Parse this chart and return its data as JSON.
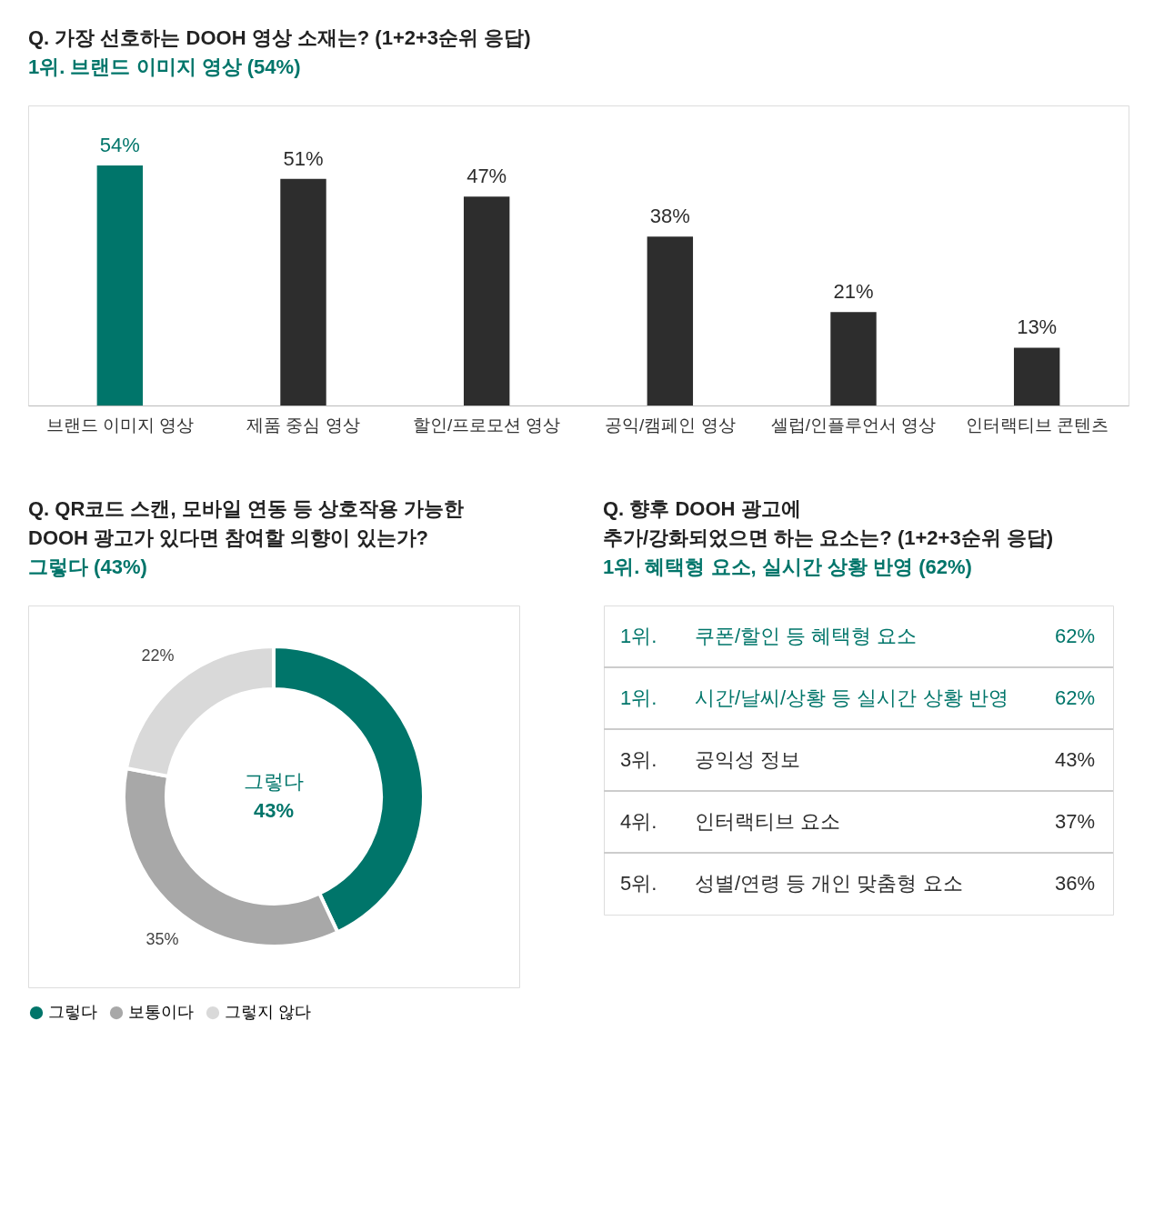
{
  "chart_data": [
    {
      "type": "bar",
      "title": "Q. 가장 선호하는 DOOH 영상 소재는? (1+2+3순위 응답)",
      "subtitle": "1위. 브랜드 이미지 영상 (54%)",
      "categories": [
        "브랜드 이미지 영상",
        "제품 중심 영상",
        "할인/프로모션 영상",
        "공익/캠페인 영상",
        "셀럽/인플루언서 영상",
        "인터랙티브 콘텐츠"
      ],
      "values": [
        54,
        51,
        47,
        38,
        21,
        13
      ],
      "value_labels": [
        "54%",
        "51%",
        "47%",
        "38%",
        "21%",
        "13%"
      ],
      "colors": [
        "#00756a",
        "#2d2d2d",
        "#2d2d2d",
        "#2d2d2d",
        "#2d2d2d",
        "#2d2d2d"
      ]
    },
    {
      "type": "donut",
      "title": "Q. QR코드 스캔, 모바일 연동 등 상호작용 가능한\nDOOH 광고가 있다면 참여할 의향이 있는가?",
      "subtitle": "그렇다 (43%)",
      "categories": [
        "그렇다",
        "보통이다",
        "그렇지 않다"
      ],
      "values": [
        43,
        35,
        22
      ],
      "value_labels": [
        null,
        "35%",
        "22%"
      ],
      "colors": [
        "#00756a",
        "#a8a8a8",
        "#d9d9d9"
      ],
      "annotations": [
        "그렇다",
        "43%"
      ],
      "legend": "bottom"
    },
    {
      "type": "other",
      "title": "Q. 향후 DOOH 광고에\n추가/강화되었으면 하는 요소는? (1+2+3순위 응답)",
      "subtitle": "1위. 혜택형 요소, 실시간 상황 반영 (62%)",
      "categories": [
        "쿠폰/할인 등 혜택형 요소",
        "시간/날씨/상황 등 실시간 상황 반영",
        "공익성 정보",
        "인터랙티브 요소",
        "성별/연령 등 개인 맞춤형 요소"
      ],
      "values": [
        62,
        62,
        43,
        37,
        36
      ],
      "value_labels": [
        "62%",
        "62%",
        "43%",
        "37%",
        "36%"
      ],
      "annotations": [
        "1위.",
        "1위.",
        "3위.",
        "4위.",
        "5위."
      ],
      "colors": [
        "#00756a",
        "#00756a",
        "#2d2d2d",
        "#2d2d2d",
        "#2d2d2d"
      ]
    }
  ]
}
